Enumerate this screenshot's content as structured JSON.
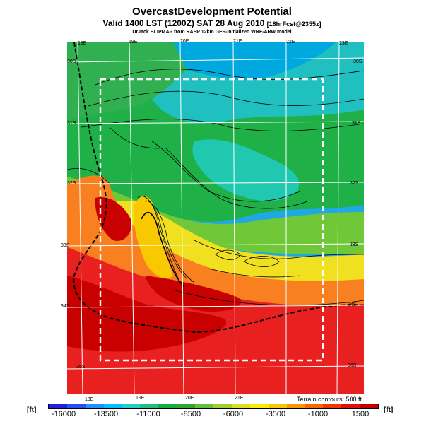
{
  "title": "OvercastDevelopment Potential",
  "subtitle_main": "Valid 1400 LST (1200Z) SAT 28 Aug 2010",
  "subtitle_forecast": "[18hrFcst@2355z]",
  "caption": "DrJack BLIPMAP from RASP 12km GFS-initialized WRF-ARW model",
  "terrain_note": "Terrain contours: 500 ft",
  "units": "[ft]",
  "top_lon_labels": [
    "18E",
    "19E",
    "20E",
    "21E",
    "22E",
    "23E"
  ],
  "bottom_lon_labels": [
    "18E",
    "19E",
    "20E",
    "21E"
  ],
  "left_lat_labels": [
    "30S",
    "31S",
    "32S",
    "33S",
    "34S",
    "35S"
  ],
  "right_lat_labels": [
    "30S",
    "31S",
    "32S",
    "33S",
    "34S",
    "35S"
  ],
  "colorbar": {
    "tick_labels": [
      "-16000",
      "-13500",
      "-11000",
      "-8500",
      "-6000",
      "-3500",
      "-1000",
      "1500"
    ],
    "colors": [
      "#2020e0",
      "#2850f0",
      "#1e90ff",
      "#00bfff",
      "#20d0c8",
      "#20c080",
      "#10b040",
      "#30a830",
      "#60c040",
      "#a0d030",
      "#d8e020",
      "#f8f000",
      "#f8c800",
      "#f89800",
      "#f86800",
      "#f03800",
      "#e01010",
      "#c00000"
    ]
  },
  "map": {
    "dark_red": "#c80000",
    "red": "#e82020",
    "orange": "#f87020",
    "yellow": "#f0e020",
    "light_green": "#70c838",
    "green": "#20b040",
    "cyan": "#20c8c0",
    "blue": "#00a8e0"
  }
}
